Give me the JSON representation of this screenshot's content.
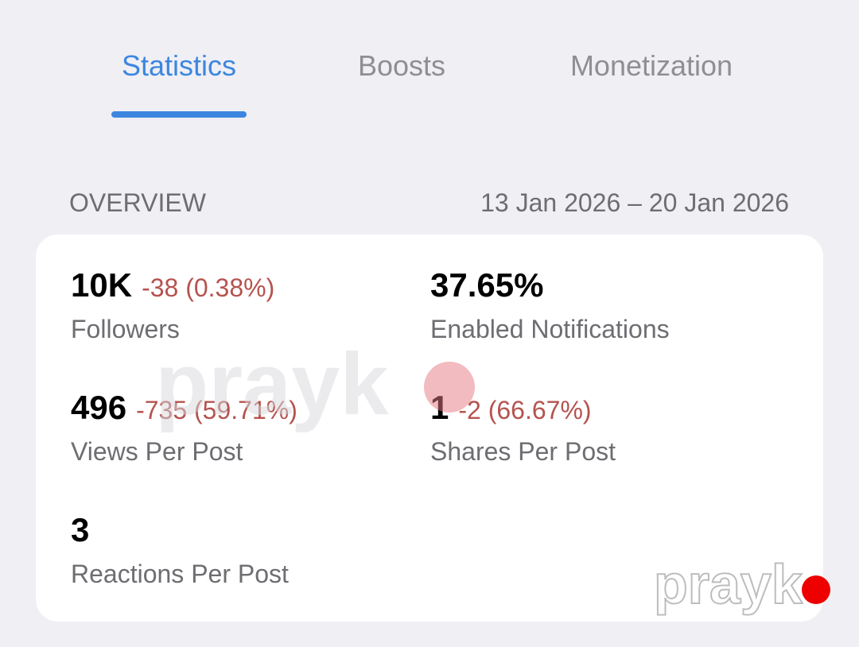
{
  "tabs": [
    {
      "label": "Statistics",
      "active": true
    },
    {
      "label": "Boosts",
      "active": false
    },
    {
      "label": "Monetization",
      "active": false
    }
  ],
  "overview": {
    "title": "OVERVIEW",
    "date_range": "13 Jan 2026 – 20 Jan 2026"
  },
  "stats": [
    {
      "value": "10K",
      "change": "-38 (0.38%)",
      "label": "Followers"
    },
    {
      "value": "37.65%",
      "label": "Enabled Notifications"
    },
    {
      "value": "496",
      "change": "-735 (59.71%)",
      "label": "Views Per Post"
    },
    {
      "value": "1",
      "change": "-2 (66.67%)",
      "label": "Shares Per Post"
    },
    {
      "value": "3",
      "label": "Reactions Per Post"
    }
  ],
  "watermark": "prayk"
}
